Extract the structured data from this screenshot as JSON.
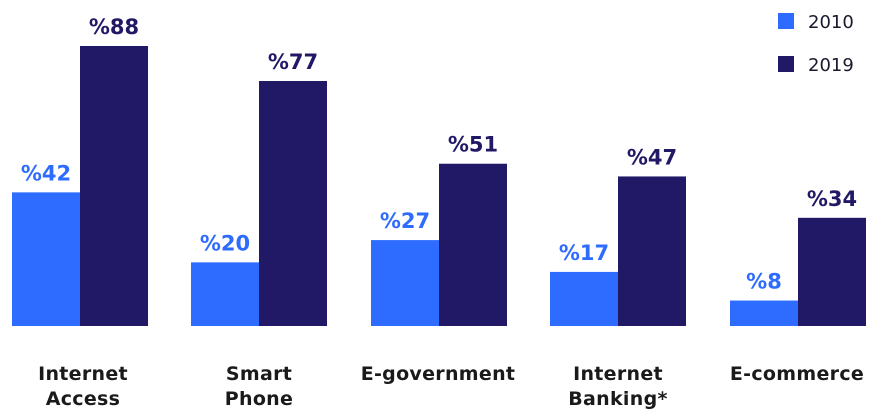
{
  "chart_data": {
    "type": "bar",
    "title": "",
    "xlabel": "",
    "ylabel": "",
    "ylim": [
      0,
      88
    ],
    "grid": false,
    "legend_position": "top-right",
    "categories": [
      [
        "Internet",
        "Access"
      ],
      [
        "Smart",
        "Phone"
      ],
      [
        "E-government"
      ],
      [
        "Internet",
        "Banking*"
      ],
      [
        "E-commerce"
      ]
    ],
    "series": [
      {
        "name": "2010",
        "color": "#2e6bff",
        "values": [
          42,
          20,
          27,
          17,
          8
        ],
        "labels": [
          "%42",
          "%20",
          "%27",
          "%17",
          "%8"
        ]
      },
      {
        "name": "2019",
        "color": "#211866",
        "values": [
          88,
          77,
          51,
          47,
          34
        ],
        "labels": [
          "%88",
          "%77",
          "%51",
          "%47",
          "%34"
        ]
      }
    ]
  }
}
